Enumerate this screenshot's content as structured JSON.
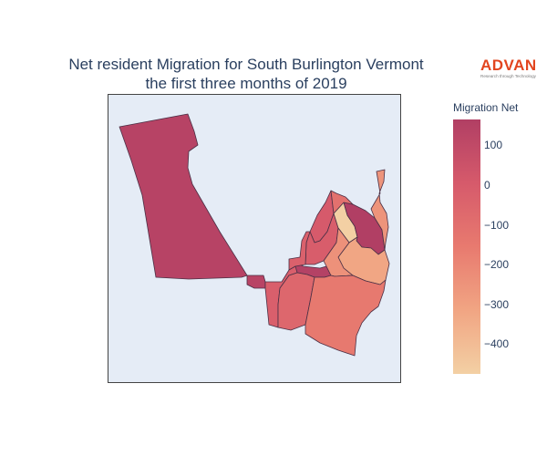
{
  "title": {
    "line1": "Net resident Migration for South Burlington Vermont",
    "line2": "the first three months of 2019"
  },
  "logo": {
    "name": "ADVAN",
    "tagline": "Research through Technology",
    "color": "#e2451f"
  },
  "map": {
    "background_color": "#e5ecf6",
    "boundary_color": "#4a3046"
  },
  "colorbar": {
    "title": "Migration Net",
    "min": -475,
    "max": 165,
    "ticks": [
      {
        "value": 100,
        "label": "100"
      },
      {
        "value": 0,
        "label": "0"
      },
      {
        "value": -100,
        "label": "−100"
      },
      {
        "value": -200,
        "label": "−200"
      },
      {
        "value": -300,
        "label": "−300"
      },
      {
        "value": -400,
        "label": "−400"
      }
    ],
    "colorscale": [
      "#f3d0a4",
      "#f1a583",
      "#e87a6f",
      "#d65a6b",
      "#b13f64"
    ]
  },
  "chart_data": {
    "type": "choropleth",
    "title": "Net resident Migration for South Burlington Vermont the first three months of 2019",
    "colorbar_title": "Migration Net",
    "regions": [
      {
        "id": "region-west-large",
        "value": 140
      },
      {
        "id": "region-small-west-tip",
        "value": 135
      },
      {
        "id": "region-central-small",
        "value": 150
      },
      {
        "id": "region-northeast-pink",
        "value": 165
      },
      {
        "id": "region-lightest-north",
        "value": -475
      },
      {
        "id": "region-north-upper",
        "value": 5
      },
      {
        "id": "region-north-lower",
        "value": -10
      },
      {
        "id": "region-central-tall",
        "value": -30
      },
      {
        "id": "region-east-orange",
        "value": -240
      },
      {
        "id": "region-east-tail",
        "value": -250
      },
      {
        "id": "region-northeast-light",
        "value": -320
      },
      {
        "id": "region-south-large",
        "value": -150
      },
      {
        "id": "region-southwest-mid",
        "value": -60
      },
      {
        "id": "region-southwest-small",
        "value": -20
      },
      {
        "id": "region-east-upper-mid",
        "value": -110
      }
    ]
  }
}
